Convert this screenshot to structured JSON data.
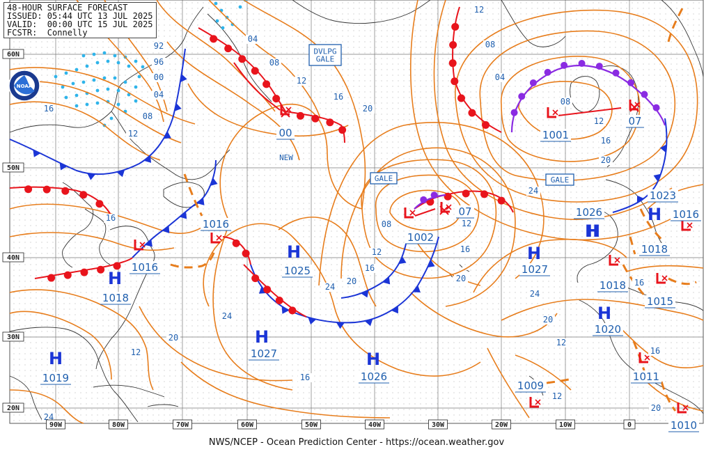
{
  "header": {
    "title": "48-HOUR SURFACE FORECAST",
    "issued": "ISSUED: 05:44 UTC 13 JUL 2025",
    "valid": "VALID:  00:00 UTC 15 JUL 2025",
    "forecaster": "FCSTR:  Connelly"
  },
  "footer": "NWS/NCEP - Ocean Prediction Center - https://ocean.weather.gov",
  "logo_text": "NOAA",
  "axes": {
    "lat_labels": [
      "60N",
      "50N",
      "40N",
      "30N",
      "20N"
    ],
    "lon_labels": [
      "90W",
      "80W",
      "70W",
      "60W",
      "50W",
      "40W",
      "30W",
      "20W",
      "10W",
      "0"
    ]
  },
  "pressure_centers": [
    {
      "type": "L",
      "value": "00",
      "color": "#e8141c"
    },
    {
      "type": "L",
      "value": "1001",
      "color": "#e8141c"
    },
    {
      "type": "L",
      "value": "07",
      "color": "#e8141c"
    },
    {
      "type": "L",
      "value": "1002",
      "color": "#e8141c"
    },
    {
      "type": "L",
      "value": "07",
      "color": "#e8141c"
    },
    {
      "type": "L",
      "value": "1016",
      "color": "#e8141c"
    },
    {
      "type": "L",
      "value": "1016",
      "color": "#e8141c"
    },
    {
      "type": "L",
      "value": "1018",
      "color": "#e8141c"
    },
    {
      "type": "L",
      "value": "1016",
      "color": "#e8141c"
    },
    {
      "type": "L",
      "value": "1015",
      "color": "#e8141c"
    },
    {
      "type": "L",
      "value": "1011",
      "color": "#e8141c"
    },
    {
      "type": "L",
      "value": "1009",
      "color": "#e8141c"
    },
    {
      "type": "L",
      "value": "1010",
      "color": "#e8141c"
    },
    {
      "type": "H",
      "value": "1018",
      "color": "#1b35d6"
    },
    {
      "type": "H",
      "value": "1025",
      "color": "#1b35d6"
    },
    {
      "type": "H",
      "value": "1027",
      "color": "#1b35d6"
    },
    {
      "type": "H",
      "value": "1026",
      "color": "#1b35d6"
    },
    {
      "type": "H",
      "value": "1027",
      "color": "#1b35d6"
    },
    {
      "type": "H",
      "value": "1026",
      "color": "#1b35d6"
    },
    {
      "type": "H",
      "value": "1023",
      "color": "#1b35d6"
    },
    {
      "type": "H",
      "value": "1018",
      "color": "#1b35d6"
    },
    {
      "type": "H",
      "value": "1020",
      "color": "#1b35d6"
    },
    {
      "type": "H",
      "value": "1019",
      "color": "#1b35d6"
    }
  ],
  "isobar_labels": [
    "16",
    "04",
    "08",
    "12",
    "16",
    "20",
    "92",
    "96",
    "00",
    "04",
    "08",
    "12",
    "16",
    "12",
    "08",
    "04",
    "08",
    "12",
    "16",
    "20",
    "24",
    "08",
    "12",
    "16",
    "20",
    "24",
    "16",
    "12",
    "20",
    "16",
    "24",
    "20",
    "24",
    "20",
    "16",
    "12",
    "12",
    "12",
    "16",
    "20",
    "24"
  ],
  "warnings": [
    "DVLPG\nGALE",
    "GALE",
    "GALE",
    "NEW"
  ],
  "colors": {
    "isobar": "#e77d1c",
    "cold_front": "#1b35d6",
    "warm_front": "#e8141c",
    "occluded_front": "#8a2be2",
    "ice": "#2fb4ea",
    "coast": "#333333",
    "grid": "#777777",
    "labels": "#1f5fae"
  }
}
